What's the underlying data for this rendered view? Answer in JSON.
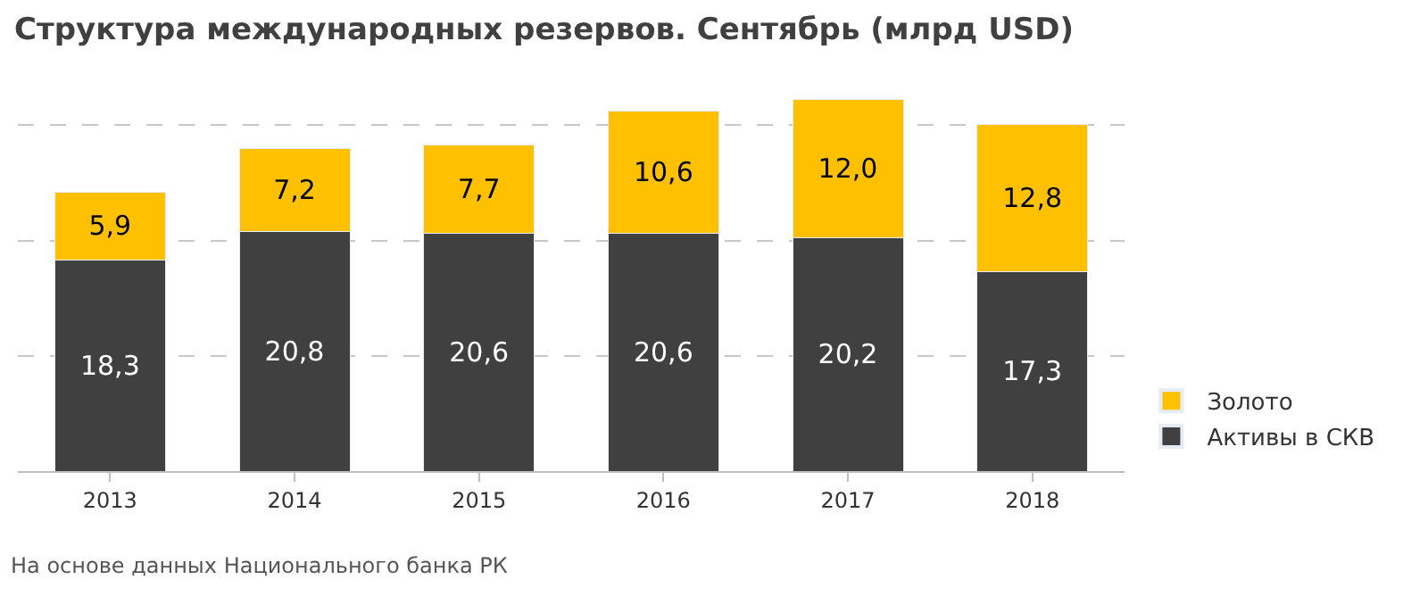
{
  "chart_data": {
    "type": "bar",
    "stacked": true,
    "title": "Структура международных резервов. Сентябрь (млрд USD)",
    "categories": [
      "2013",
      "2014",
      "2015",
      "2016",
      "2017",
      "2018"
    ],
    "series": [
      {
        "name": "Активы в СКВ",
        "color": "#404040",
        "values": [
          18.3,
          20.8,
          20.6,
          20.6,
          20.2,
          17.3
        ],
        "value_labels": [
          "18,3",
          "20,8",
          "20,6",
          "20,6",
          "20,2",
          "17,3"
        ]
      },
      {
        "name": "Золото",
        "color": "#ffc000",
        "values": [
          5.9,
          7.2,
          7.7,
          10.6,
          12.0,
          12.8
        ],
        "value_labels": [
          "5,9",
          "7,2",
          "7,7",
          "10,6",
          "12,0",
          "12,8"
        ]
      }
    ],
    "yticks": [
      {
        "value": 0,
        "label": null
      },
      {
        "value": 10,
        "label": null
      },
      {
        "value": 20,
        "label": null
      },
      {
        "value": 30,
        "label": null
      }
    ],
    "tick_labels": "x",
    "grid": "y",
    "legend": "right",
    "annotations": [
      "На основе данных Национального банка РК"
    ]
  }
}
